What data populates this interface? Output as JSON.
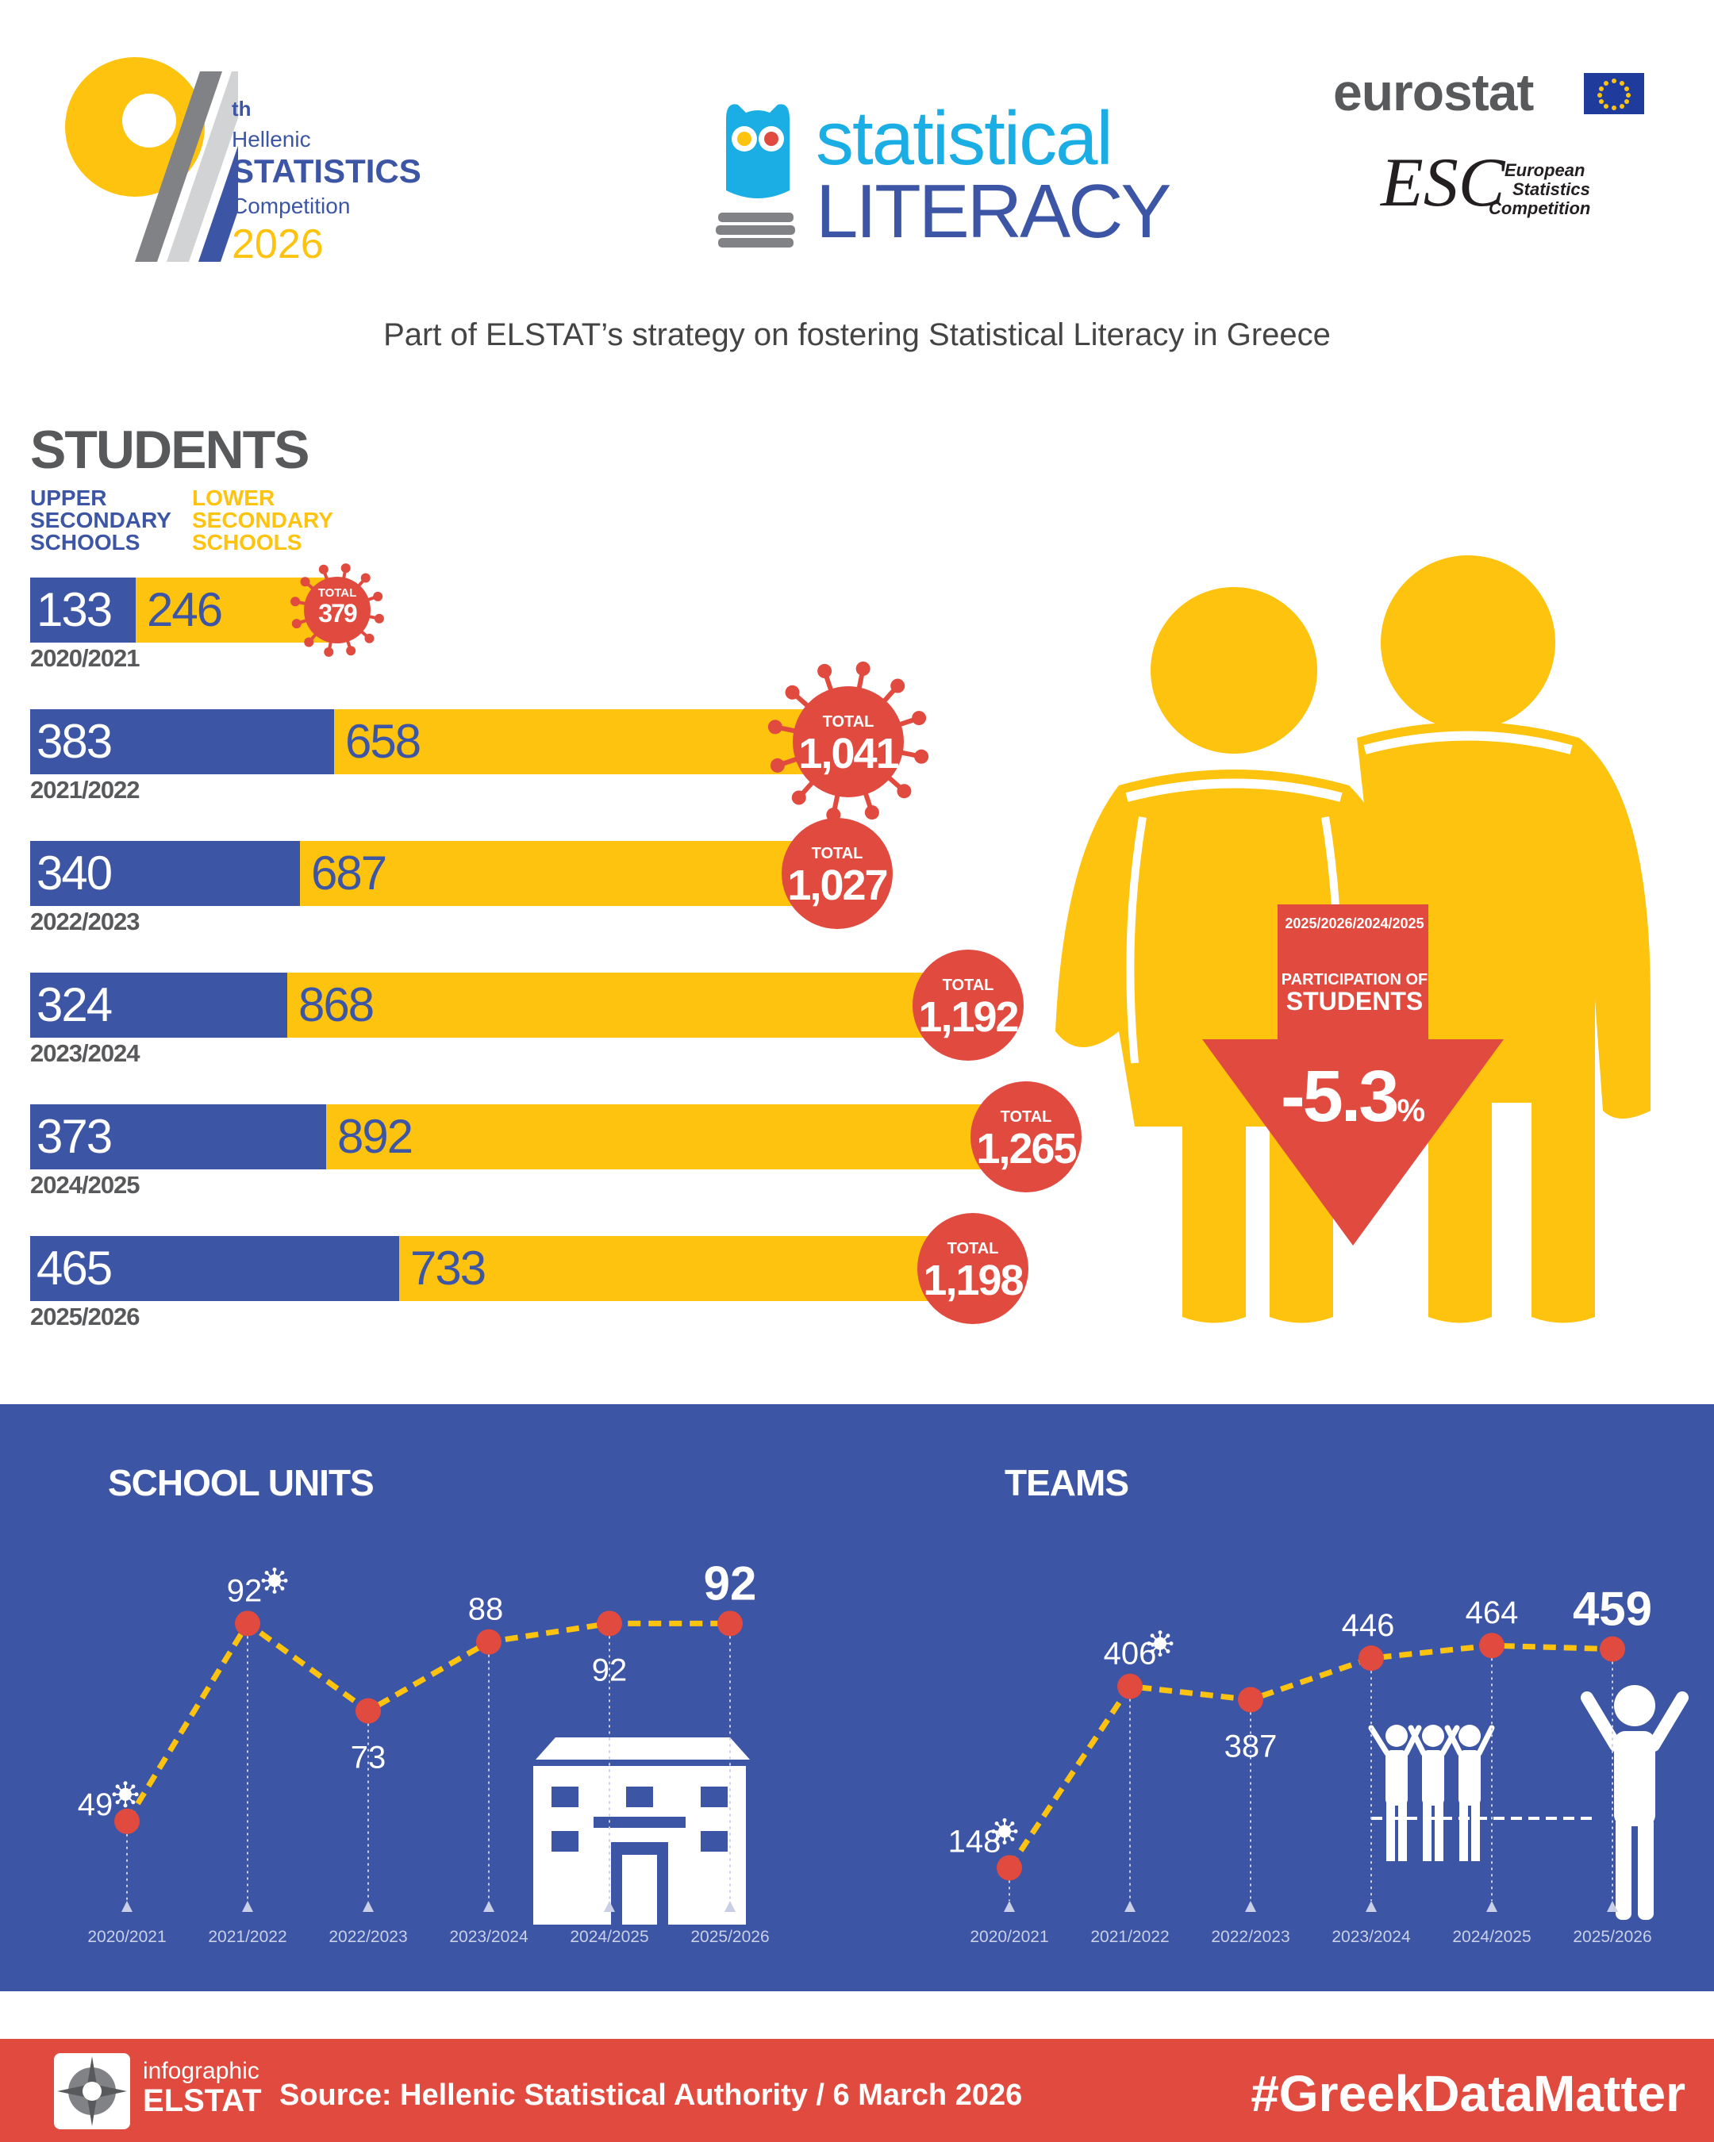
{
  "header": {
    "competition": {
      "number": "9",
      "ordinal": "th",
      "line1": "Hellenic",
      "line2": "STATISTICS",
      "line3": "Competition",
      "year": "2026"
    },
    "literacy": {
      "line1": "statistical",
      "line2": "LITERACY"
    },
    "eurostat": "eurostat",
    "esc": {
      "mark": "ESC",
      "line1": "European",
      "line2": "Statistics",
      "line3": "Competition"
    },
    "subtitle": "Part of ELSTAT’s strategy on fostering Statistical Literacy in Greece"
  },
  "students": {
    "title": "STUDENTS",
    "legend": {
      "upper": [
        "UPPER",
        "SECONDARY",
        "SCHOOLS"
      ],
      "lower": [
        "LOWER",
        "SECONDARY",
        "SCHOOLS"
      ]
    },
    "total_label": "TOTAL",
    "change": {
      "period": "2025/2026/2024/2025",
      "label1": "PARTICIPATION OF",
      "label2": "STUDENTS",
      "value": "-5.3",
      "unit": "%"
    }
  },
  "panels": {
    "school_units_title": "SCHOOL UNITS",
    "teams_title": "TEAMS"
  },
  "chart_data": [
    {
      "type": "bar",
      "stacked": true,
      "orientation": "horizontal",
      "title": "STUDENTS",
      "categories": [
        "2020/2021",
        "2021/2022",
        "2022/2023",
        "2023/2024",
        "2024/2025",
        "2025/2026"
      ],
      "series": [
        {
          "name": "UPPER SECONDARY SCHOOLS",
          "values": [
            133,
            383,
            340,
            324,
            373,
            465
          ],
          "color": "#3d55a5"
        },
        {
          "name": "LOWER SECONDARY SCHOOLS",
          "values": [
            246,
            658,
            687,
            868,
            892,
            733
          ],
          "color": "#fdc30f"
        }
      ],
      "totals": [
        "379",
        "1,041",
        "1,027",
        "1,192",
        "1,265",
        "1,198"
      ],
      "covid_marked": [
        true,
        true,
        false,
        false,
        false,
        false
      ]
    },
    {
      "type": "line",
      "title": "SCHOOL UNITS",
      "x": [
        "2020/2021",
        "2021/2022",
        "2022/2023",
        "2023/2024",
        "2024/2025",
        "2025/2026"
      ],
      "values": [
        49,
        92,
        73,
        88,
        92,
        92
      ],
      "covid_marked": [
        true,
        true,
        false,
        false,
        false,
        false
      ],
      "ylim": [
        30,
        100
      ]
    },
    {
      "type": "line",
      "title": "TEAMS",
      "x": [
        "2020/2021",
        "2021/2022",
        "2022/2023",
        "2023/2024",
        "2024/2025",
        "2025/2026"
      ],
      "values": [
        148,
        406,
        387,
        446,
        464,
        459
      ],
      "covid_marked": [
        true,
        true,
        false,
        false,
        false,
        false
      ],
      "ylim": [
        100,
        480
      ]
    }
  ],
  "footer": {
    "brand1": "infographic",
    "brand2": "ELSTAT",
    "source": "Source: Hellenic Statistical Authority / 6 March 2026",
    "hashtag": "#GreekDataMatter"
  },
  "colors": {
    "blue": "#3d55a5",
    "yellow": "#fdc30f",
    "red": "#e04a3f",
    "cyan": "#1aaee4",
    "grey": "#58595b"
  }
}
